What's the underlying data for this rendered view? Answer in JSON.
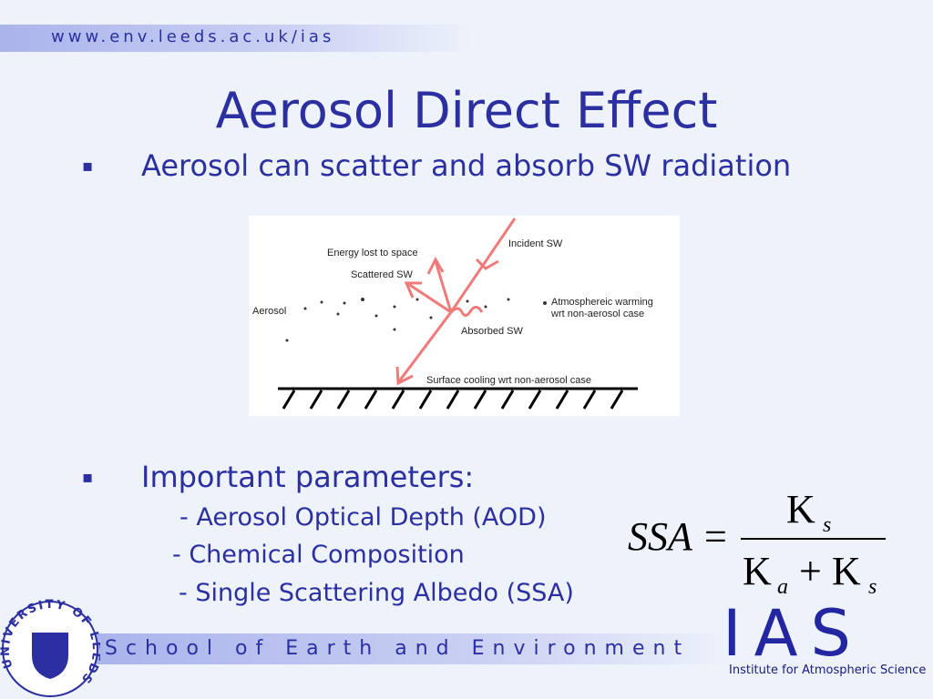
{
  "header": {
    "url": "www.env.leeds.ac.uk/ias"
  },
  "title": "Aerosol Direct Effect",
  "bullets": [
    {
      "marker": "▪",
      "text": "Aerosol can scatter and absorb SW radiation"
    },
    {
      "marker": "▪",
      "text": "Important parameters:",
      "items": [
        "- Aerosol Optical Depth (AOD)",
        "- Chemical Composition",
        "- Single Scattering Albedo (SSA)"
      ]
    }
  ],
  "diagram": {
    "labels": {
      "energy_lost": "Energy lost to space",
      "incident": "Incident SW",
      "scattered": "Scattered SW",
      "aerosol": "Aerosol",
      "warming": [
        "Atmosphereic warming",
        "wrt non-aerosol case"
      ],
      "absorbed": "Absorbed SW",
      "cooling": "Surface cooling wrt non-aerosol case"
    }
  },
  "formula": {
    "lhs": "SSA",
    "equals": "=",
    "numerator": [
      "K",
      "s"
    ],
    "denominator": [
      "K",
      "a",
      "+",
      "K",
      "s"
    ]
  },
  "footer": {
    "school": "School of Earth and Environment",
    "logo_text": "UNIVERSITY OF LEEDS",
    "ias": "IAS",
    "institute": "Institute for Atmospheric Science"
  }
}
